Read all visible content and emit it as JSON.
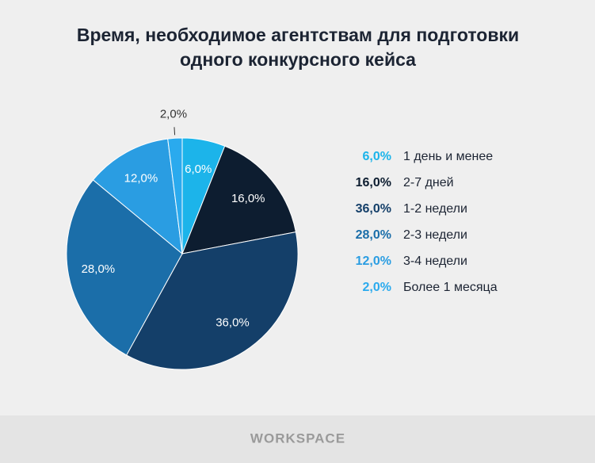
{
  "chart_data": {
    "type": "pie",
    "title": [
      "Время, необходимое агентствам для подготовки",
      "одного конкурсного кейса"
    ],
    "categories": [
      "1 день и менее",
      "2-7 дней",
      "1-2 недели",
      "2-3 недели",
      "3-4 недели",
      "Более 1 месяца"
    ],
    "values": [
      6,
      16,
      36,
      28,
      12,
      2
    ],
    "value_labels": [
      "6,0%",
      "16,0%",
      "36,0%",
      "28,0%",
      "12,0%",
      "2,0%"
    ],
    "colors": [
      "#1cb4ea",
      "#0d1d30",
      "#143f69",
      "#1b6ea9",
      "#2a9de2",
      "#2aaaee"
    ]
  },
  "footer": "WORKSPACE"
}
